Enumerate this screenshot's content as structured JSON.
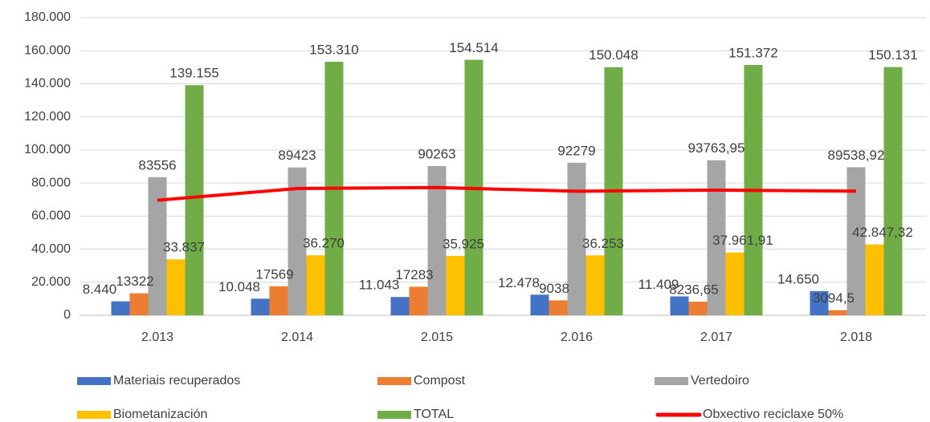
{
  "chart_data": {
    "type": "bar",
    "categories": [
      "2.013",
      "2.014",
      "2.015",
      "2.016",
      "2.017",
      "2.018"
    ],
    "series": [
      {
        "name": "Materiais recuperados",
        "color": "#4472c4",
        "values": [
          8440,
          10048,
          11043,
          12478,
          11409,
          14650
        ],
        "value_labels": [
          "8.440",
          "10.048",
          "11.043",
          "12.478",
          "11.409",
          "14.650"
        ]
      },
      {
        "name": "Compost",
        "color": "#ed7d31",
        "values": [
          13322,
          17569,
          17283,
          9038,
          8236.65,
          3094.5
        ],
        "value_labels": [
          "13322",
          "17569",
          "17283",
          "9038",
          "8236,65",
          "3094,5"
        ]
      },
      {
        "name": "Vertedoiro",
        "color": "#a5a5a5",
        "values": [
          83556,
          89423,
          90263,
          92279,
          93763.95,
          89538.92
        ],
        "value_labels": [
          "83556",
          "89423",
          "90263",
          "92279",
          "93763,95",
          "89538,92"
        ]
      },
      {
        "name": "Biometanización",
        "color": "#ffc000",
        "values": [
          33837,
          36270,
          35925,
          36253,
          37961.91,
          42847.32
        ],
        "value_labels": [
          "33.837",
          "36.270",
          "35.925",
          "36.253",
          "37.961,91",
          "42.847,32"
        ]
      },
      {
        "name": "TOTAL",
        "color": "#70ad47",
        "values": [
          139155,
          153310,
          154514,
          150048,
          151372,
          150131
        ],
        "value_labels": [
          "139.155",
          "153.310",
          "154.514",
          "150.048",
          "151.372",
          "150.131"
        ]
      },
      {
        "name": "Obxectivo reciclaxe 50%",
        "color": "#ff0000",
        "type": "line",
        "values": [
          69578,
          76655,
          77257,
          75024,
          75686,
          75066
        ]
      }
    ],
    "ylim": [
      0,
      180000
    ],
    "yticks": [
      0,
      {
        "value": 20000,
        "label": "20.000"
      },
      {
        "value": 40000,
        "label": "40.000"
      },
      {
        "value": 60000,
        "label": "60.000"
      },
      {
        "value": 80000,
        "label": "80.000"
      },
      {
        "value": 100000,
        "label": "100.000"
      },
      {
        "value": 120000,
        "label": "120.000"
      },
      {
        "value": 140000,
        "label": "140.000"
      },
      {
        "value": 160000,
        "label": "160.000"
      },
      {
        "value": 180000,
        "label": "180.000"
      }
    ],
    "grid": true
  }
}
